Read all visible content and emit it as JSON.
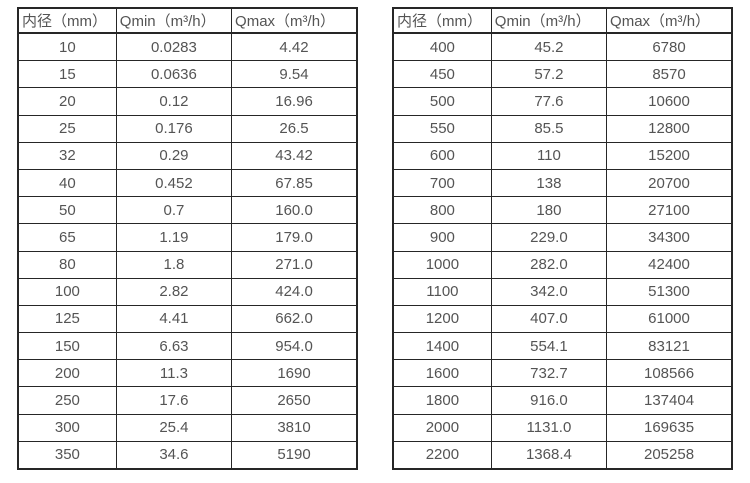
{
  "tables": [
    {
      "name": "flow-table-small-diameters",
      "headers": [
        "内径（mm）",
        "Qmin（m³/h）",
        "Qmax（m³/h）"
      ],
      "rows": [
        [
          "10",
          "0.0283",
          "4.42"
        ],
        [
          "15",
          "0.0636",
          "9.54"
        ],
        [
          "20",
          "0.12",
          "16.96"
        ],
        [
          "25",
          "0.176",
          "26.5"
        ],
        [
          "32",
          "0.29",
          "43.42"
        ],
        [
          "40",
          "0.452",
          "67.85"
        ],
        [
          "50",
          "0.7",
          "160.0"
        ],
        [
          "65",
          "1.19",
          "179.0"
        ],
        [
          "80",
          "1.8",
          "271.0"
        ],
        [
          "100",
          "2.82",
          "424.0"
        ],
        [
          "125",
          "4.41",
          "662.0"
        ],
        [
          "150",
          "6.63",
          "954.0"
        ],
        [
          "200",
          "11.3",
          "1690"
        ],
        [
          "250",
          "17.6",
          "2650"
        ],
        [
          "300",
          "25.4",
          "3810"
        ],
        [
          "350",
          "34.6",
          "5190"
        ]
      ]
    },
    {
      "name": "flow-table-large-diameters",
      "headers": [
        "内径（mm）",
        "Qmin（m³/h）",
        "Qmax（m³/h）"
      ],
      "rows": [
        [
          "400",
          "45.2",
          "6780"
        ],
        [
          "450",
          "57.2",
          "8570"
        ],
        [
          "500",
          "77.6",
          "10600"
        ],
        [
          "550",
          "85.5",
          "12800"
        ],
        [
          "600",
          "110",
          "15200"
        ],
        [
          "700",
          "138",
          "20700"
        ],
        [
          "800",
          "180",
          "27100"
        ],
        [
          "900",
          "229.0",
          "34300"
        ],
        [
          "1000",
          "282.0",
          "42400"
        ],
        [
          "1100",
          "342.0",
          "51300"
        ],
        [
          "1200",
          "407.0",
          "61000"
        ],
        [
          "1400",
          "554.1",
          "83121"
        ],
        [
          "1600",
          "732.7",
          "108566"
        ],
        [
          "1800",
          "916.0",
          "137404"
        ],
        [
          "2000",
          "1131.0",
          "169635"
        ],
        [
          "2200",
          "1368.4",
          "205258"
        ]
      ]
    }
  ],
  "colors": {
    "border": "#262626",
    "text": "#545454",
    "background": "#ffffff"
  }
}
